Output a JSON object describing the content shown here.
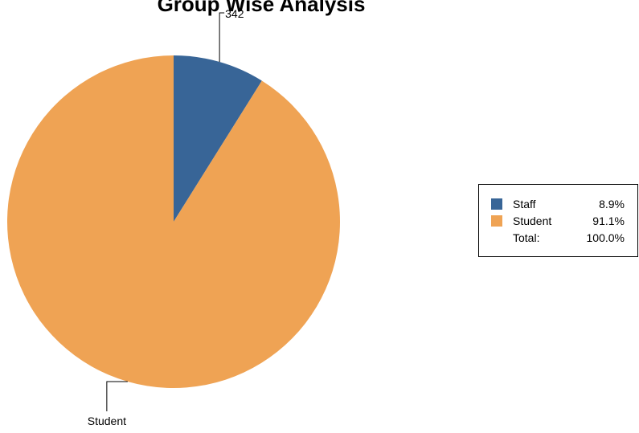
{
  "chart_data": {
    "type": "pie",
    "title": "Group Wise Analysis",
    "categories": [
      "Staff",
      "Student"
    ],
    "values": [
      8.9,
      91.1
    ],
    "value_labels": [
      "8.9%",
      "91.1%"
    ],
    "colors": [
      "#386597",
      "#efa354"
    ],
    "slice_labels": [
      "342",
      "Student"
    ],
    "total_name": "Total:",
    "total": {
      "value": 100,
      "label": "100.0%"
    },
    "legend": "right"
  }
}
